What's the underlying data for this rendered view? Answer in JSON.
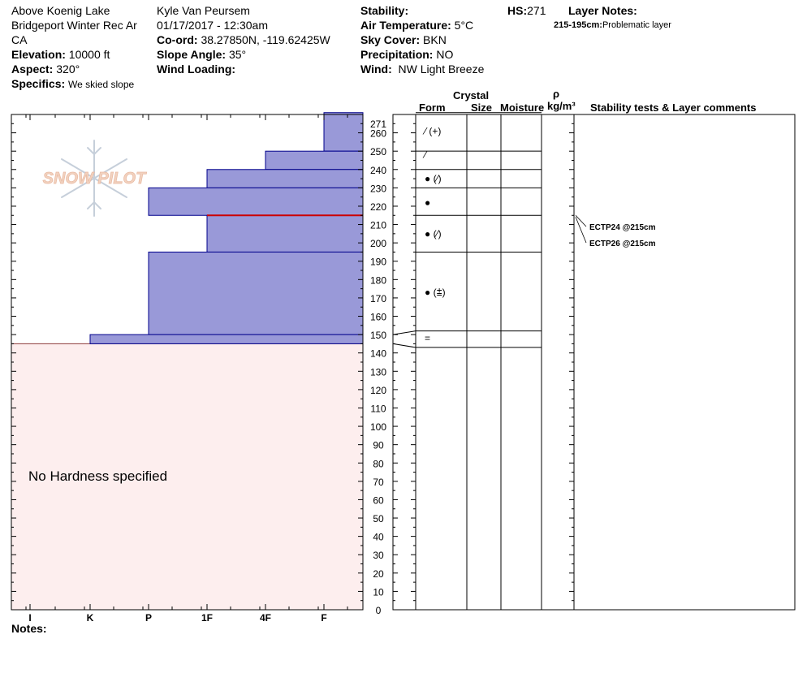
{
  "header": {
    "location": "Above Koenig Lake",
    "area": "Bridgeport Winter Rec Ar",
    "state": "CA",
    "elevation_label": "Elevation:",
    "elevation": "10000 ft",
    "aspect_label": "Aspect:",
    "aspect": "320°",
    "specifics_label": "Specifics:",
    "specifics": "We skied slope",
    "observer": "Kyle Van Peursem",
    "datetime": "01/17/2017 - 12:30am",
    "coord_label": "Co-ord:",
    "coord": "38.27850N, -119.62425W",
    "slope_label": "Slope Angle:",
    "slope": "35°",
    "wind_loading_label": "Wind Loading:",
    "stability_label": "Stability:",
    "air_temp_label": "Air Temperature:",
    "air_temp": "5°C",
    "sky_label": "Sky Cover:",
    "sky": "BKN",
    "precip_label": "Precipitation:",
    "precip": "NO",
    "wind_label": "Wind:",
    "wind": "NW Light Breeze",
    "hs_label": "HS:",
    "hs": "271",
    "layer_notes_label": "Layer Notes:",
    "layer_note_range": "215-195cm:",
    "layer_note_text": "Problematic layer"
  },
  "columns": {
    "crystal": "Crystal",
    "form": "Form",
    "size": "Size",
    "moisture": "Moisture",
    "rho": "ρ",
    "density_unit": "kg/m³",
    "stability": "Stability tests & Layer comments"
  },
  "logo_text": "SNOW PILOT",
  "no_hardness": "No Hardness specified",
  "notes_label": "Notes:",
  "colors": {
    "layer_fill": "#9999d8",
    "layer_stroke": "#00008b",
    "no_hardness_fill": "#fdeeee",
    "weak_layer": "#cc0000"
  },
  "chart_data": {
    "type": "snow-profile",
    "y_ticks": [
      0,
      10,
      20,
      30,
      40,
      50,
      60,
      70,
      80,
      90,
      100,
      110,
      120,
      130,
      140,
      150,
      160,
      170,
      180,
      190,
      200,
      210,
      220,
      230,
      240,
      250,
      260,
      271
    ],
    "ylim": [
      0,
      271
    ],
    "hardness_ticks": [
      "I",
      "K",
      "P",
      "1F",
      "4F",
      "F"
    ],
    "layers": [
      {
        "top": 271,
        "bottom": 250,
        "hardness": "F"
      },
      {
        "top": 250,
        "bottom": 240,
        "hardness": "4F"
      },
      {
        "top": 240,
        "bottom": 230,
        "hardness": "1F"
      },
      {
        "top": 230,
        "bottom": 215,
        "hardness": "P"
      },
      {
        "top": 215,
        "bottom": 195,
        "hardness": "1F"
      },
      {
        "top": 195,
        "bottom": 150,
        "hardness": "P"
      },
      {
        "top": 150,
        "bottom": 145,
        "hardness": "K"
      }
    ],
    "weak_layer_depth": 215,
    "no_hardness_below": 145,
    "form_boundaries": [
      271,
      250,
      240,
      230,
      215,
      195,
      152,
      143
    ],
    "forms": [
      {
        "y": 261,
        "symbol": "⁄ (+)"
      },
      {
        "y": 248,
        "symbol": "⁄"
      },
      {
        "y": 235,
        "symbol": "● (⁄)"
      },
      {
        "y": 222,
        "symbol": "●"
      },
      {
        "y": 205,
        "symbol": "● (⁄)"
      },
      {
        "y": 173,
        "symbol": "● (⩲)"
      },
      {
        "y": 148,
        "symbol": "="
      }
    ],
    "stability_tests": [
      {
        "label": "ECTP24 @215cm",
        "depth": 215
      },
      {
        "label": "ECTP26 @215cm",
        "depth": 215
      }
    ]
  }
}
